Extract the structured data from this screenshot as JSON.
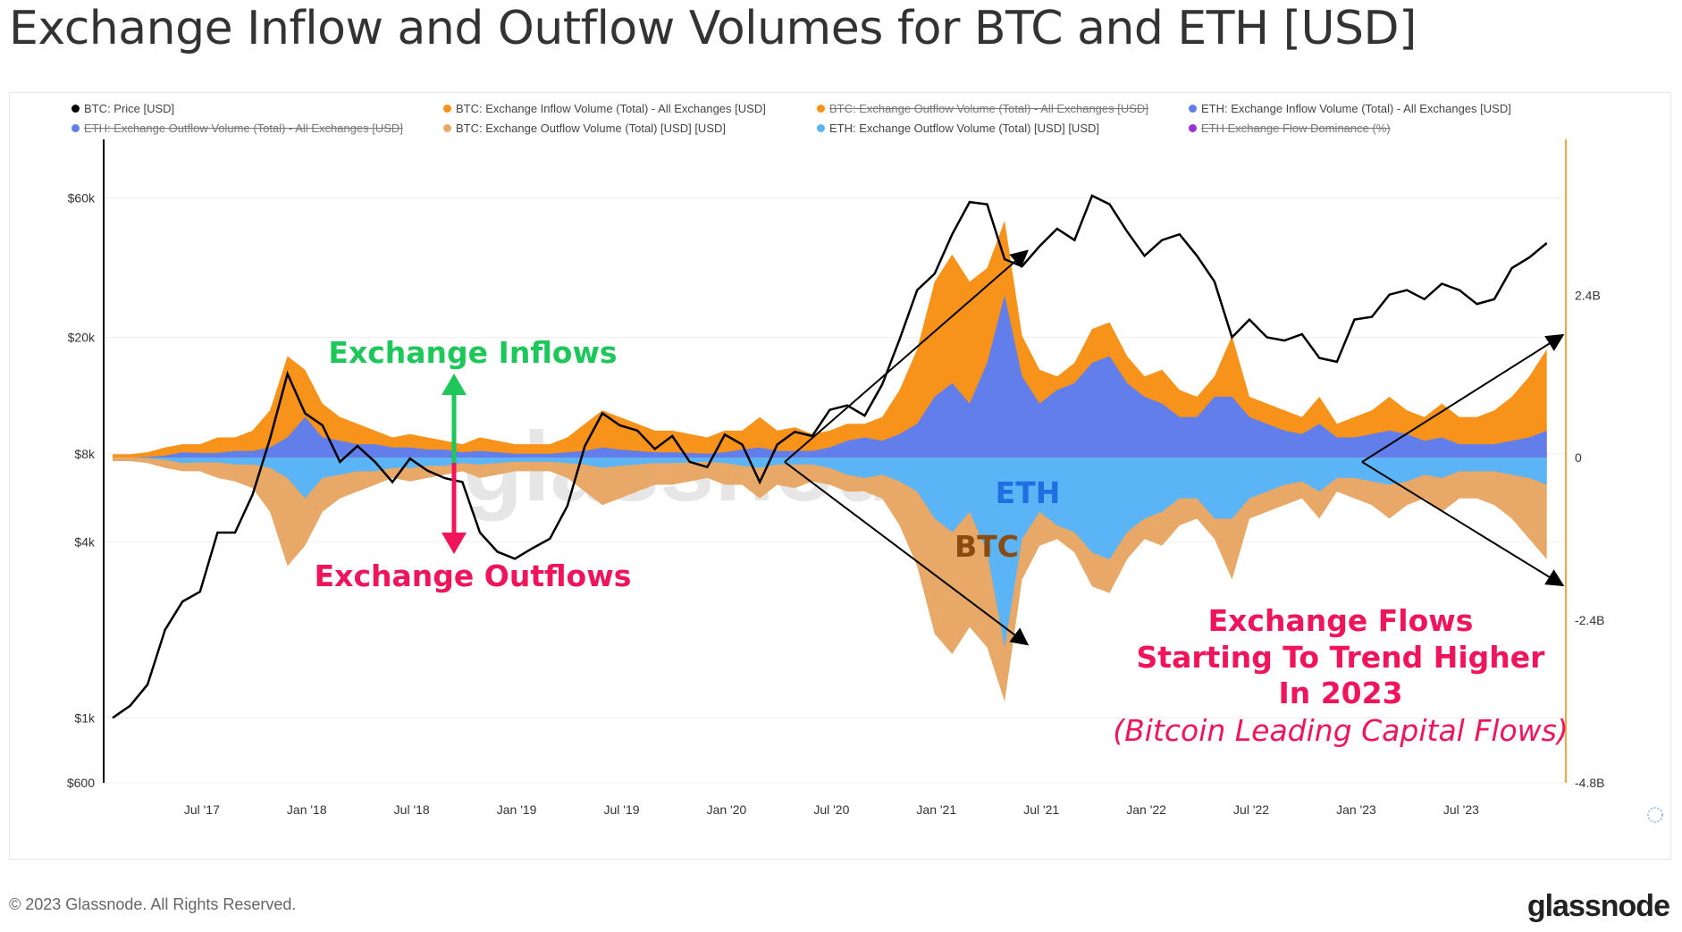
{
  "title": "Exchange Inflow and Outflow Volumes for BTC and ETH [USD]",
  "legend": [
    {
      "label": "BTC: Price [USD]",
      "color": "#000000",
      "active": true
    },
    {
      "label": "BTC: Exchange Inflow Volume (Total) - All Exchanges [USD]",
      "color": "#f7931a",
      "active": true
    },
    {
      "label": "BTC: Exchange Outflow Volume (Total) - All Exchanges [USD]",
      "color": "#f7931a",
      "active": false
    },
    {
      "label": "ETH: Exchange Inflow Volume (Total) - All Exchanges [USD]",
      "color": "#627eea",
      "active": true
    },
    {
      "label": "ETH: Exchange Outflow Volume (Total) - All Exchanges [USD]",
      "color": "#627eea",
      "active": false
    },
    {
      "label": "BTC: Exchange Outflow Volume (Total) [USD] [USD]",
      "color": "#e8a867",
      "active": true
    },
    {
      "label": "ETH: Exchange Outflow Volume (Total) [USD] [USD]",
      "color": "#5ab4f5",
      "active": true
    },
    {
      "label": "ETH Exchange Flow Dominance (%)",
      "color": "#9b30d9",
      "active": false
    }
  ],
  "annotations": {
    "inflows": "Exchange Inflows",
    "outflows": "Exchange Outflows",
    "eth": "ETH",
    "btc": "BTC",
    "trend_lines": [
      "Exchange Flows",
      "Starting To Trend Higher",
      "In 2023"
    ],
    "trend_sub": "(Bitcoin Leading Capital Flows)",
    "watermark": "glassnode"
  },
  "footer": {
    "copyright": "© 2023 Glassnode. All Rights Reserved.",
    "logo": "glassnode"
  },
  "chart_data": {
    "type": "area",
    "title": "Exchange Inflow and Outflow Volumes for BTC and ETH [USD]",
    "x_start": "2017-02",
    "x_step": "month",
    "xticks": [
      "Jul '17",
      "Jan '18",
      "Jul '18",
      "Jan '19",
      "Jul '19",
      "Jan '20",
      "Jul '20",
      "Jan '21",
      "Jul '21",
      "Jan '22",
      "Jul '22",
      "Jan '23",
      "Jul '23"
    ],
    "xtick_months": [
      5,
      11,
      17,
      23,
      29,
      35,
      41,
      47,
      53,
      59,
      65,
      71,
      77
    ],
    "left_axis": {
      "scale": "log",
      "ticks": [
        "$600",
        "$1k",
        "$4k",
        "$8k",
        "$20k",
        "$60k"
      ],
      "tick_values": [
        600,
        1000,
        4000,
        8000,
        20000,
        60000
      ],
      "range": [
        600,
        95000
      ]
    },
    "right_axis": {
      "unit": "B USD",
      "ticks": [
        "-4.8B",
        "-2.4B",
        "0",
        "2.4B"
      ],
      "tick_values": [
        -4.8,
        -2.4,
        0,
        2.4
      ],
      "range": [
        -4.8,
        4.7
      ]
    },
    "series": [
      {
        "name": "BTC: Price [USD]",
        "axis": "left",
        "color": "#000000",
        "type": "line",
        "values": [
          1000,
          1100,
          1300,
          2000,
          2500,
          2700,
          4300,
          4300,
          5800,
          9000,
          15000,
          11000,
          10000,
          7500,
          8500,
          7500,
          6400,
          7700,
          7000,
          6600,
          6400,
          4300,
          3700,
          3500,
          3800,
          4100,
          5300,
          8500,
          11000,
          10000,
          9600,
          8300,
          9200,
          7500,
          7200,
          9300,
          8600,
          6400,
          8600,
          9500,
          9200,
          11300,
          11700,
          10800,
          13800,
          19700,
          29000,
          33000,
          45000,
          58000,
          57000,
          37000,
          35000,
          41000,
          47000,
          43000,
          61000,
          57000,
          46000,
          38000,
          43000,
          45000,
          38000,
          31000,
          20000,
          23000,
          20000,
          19500,
          20500,
          17000,
          16500,
          23000,
          23500,
          28000,
          29000,
          27000,
          30500,
          29000,
          26000,
          27000,
          34500,
          37500,
          42000
        ]
      },
      {
        "name": "BTC: Exchange Inflow Volume",
        "axis": "right",
        "color": "#f7931a",
        "type": "area",
        "values": [
          0.05,
          0.05,
          0.08,
          0.15,
          0.2,
          0.2,
          0.3,
          0.3,
          0.4,
          0.7,
          1.5,
          1.3,
          0.8,
          0.6,
          0.5,
          0.4,
          0.3,
          0.35,
          0.3,
          0.25,
          0.2,
          0.3,
          0.25,
          0.2,
          0.2,
          0.2,
          0.3,
          0.5,
          0.7,
          0.6,
          0.5,
          0.4,
          0.4,
          0.35,
          0.3,
          0.4,
          0.4,
          0.6,
          0.4,
          0.45,
          0.35,
          0.4,
          0.5,
          0.5,
          0.6,
          1.0,
          1.6,
          2.6,
          3.0,
          2.6,
          2.8,
          3.5,
          1.8,
          1.3,
          1.2,
          1.4,
          1.9,
          2.0,
          1.5,
          1.2,
          1.3,
          1.0,
          0.9,
          1.2,
          1.8,
          0.9,
          0.8,
          0.7,
          0.6,
          0.9,
          0.5,
          0.6,
          0.7,
          0.9,
          0.7,
          0.6,
          0.8,
          0.6,
          0.6,
          0.7,
          0.9,
          1.2,
          1.6
        ]
      },
      {
        "name": "ETH: Exchange Inflow Volume",
        "axis": "right",
        "color": "#627eea",
        "type": "area",
        "values": [
          0,
          0,
          0.01,
          0.03,
          0.08,
          0.07,
          0.07,
          0.1,
          0.1,
          0.15,
          0.3,
          0.6,
          0.3,
          0.25,
          0.2,
          0.2,
          0.15,
          0.15,
          0.12,
          0.12,
          0.08,
          0.1,
          0.08,
          0.06,
          0.06,
          0.06,
          0.08,
          0.1,
          0.15,
          0.12,
          0.1,
          0.08,
          0.08,
          0.07,
          0.06,
          0.08,
          0.12,
          0.15,
          0.1,
          0.1,
          0.1,
          0.15,
          0.25,
          0.3,
          0.25,
          0.35,
          0.5,
          0.9,
          1.1,
          0.8,
          1.4,
          2.4,
          1.2,
          0.8,
          1.0,
          1.1,
          1.4,
          1.5,
          1.1,
          0.9,
          0.8,
          0.6,
          0.6,
          0.9,
          0.9,
          0.6,
          0.5,
          0.4,
          0.35,
          0.5,
          0.3,
          0.3,
          0.35,
          0.4,
          0.35,
          0.25,
          0.3,
          0.2,
          0.2,
          0.2,
          0.25,
          0.3,
          0.4
        ]
      },
      {
        "name": "BTC: Exchange Outflow Volume",
        "axis": "right",
        "color": "#e8a867",
        "type": "area",
        "values": [
          -0.05,
          -0.05,
          -0.08,
          -0.15,
          -0.2,
          -0.2,
          -0.3,
          -0.35,
          -0.45,
          -0.8,
          -1.6,
          -1.3,
          -0.8,
          -0.6,
          -0.5,
          -0.4,
          -0.3,
          -0.35,
          -0.3,
          -0.25,
          -0.2,
          -0.3,
          -0.25,
          -0.2,
          -0.2,
          -0.2,
          -0.3,
          -0.5,
          -0.7,
          -0.6,
          -0.5,
          -0.4,
          -0.4,
          -0.35,
          -0.3,
          -0.4,
          -0.4,
          -0.6,
          -0.4,
          -0.45,
          -0.35,
          -0.4,
          -0.5,
          -0.5,
          -0.6,
          -1.0,
          -1.6,
          -2.6,
          -2.9,
          -2.5,
          -2.8,
          -3.6,
          -1.8,
          -1.3,
          -1.2,
          -1.4,
          -1.9,
          -2.0,
          -1.5,
          -1.2,
          -1.3,
          -1.0,
          -0.9,
          -1.2,
          -1.8,
          -0.9,
          -0.8,
          -0.7,
          -0.6,
          -0.9,
          -0.5,
          -0.6,
          -0.7,
          -0.9,
          -0.7,
          -0.6,
          -0.8,
          -0.6,
          -0.6,
          -0.7,
          -0.9,
          -1.2,
          -1.5
        ]
      },
      {
        "name": "ETH: Exchange Outflow Volume",
        "axis": "right",
        "color": "#5ab4f5",
        "type": "area",
        "values": [
          0,
          0,
          -0.01,
          -0.03,
          -0.08,
          -0.07,
          -0.07,
          -0.1,
          -0.1,
          -0.15,
          -0.3,
          -0.6,
          -0.3,
          -0.25,
          -0.2,
          -0.2,
          -0.15,
          -0.15,
          -0.12,
          -0.12,
          -0.08,
          -0.1,
          -0.08,
          -0.06,
          -0.06,
          -0.06,
          -0.08,
          -0.1,
          -0.15,
          -0.12,
          -0.1,
          -0.08,
          -0.08,
          -0.07,
          -0.06,
          -0.08,
          -0.12,
          -0.15,
          -0.1,
          -0.1,
          -0.1,
          -0.15,
          -0.25,
          -0.3,
          -0.25,
          -0.35,
          -0.5,
          -0.9,
          -1.1,
          -0.8,
          -1.4,
          -2.8,
          -1.2,
          -0.8,
          -1.0,
          -1.1,
          -1.4,
          -1.5,
          -1.1,
          -0.9,
          -0.8,
          -0.6,
          -0.6,
          -0.9,
          -0.9,
          -0.6,
          -0.5,
          -0.4,
          -0.35,
          -0.5,
          -0.3,
          -0.3,
          -0.35,
          -0.4,
          -0.35,
          -0.25,
          -0.3,
          -0.2,
          -0.2,
          -0.2,
          -0.25,
          -0.3,
          -0.4
        ]
      }
    ],
    "grid": true,
    "legend_position": "top"
  }
}
